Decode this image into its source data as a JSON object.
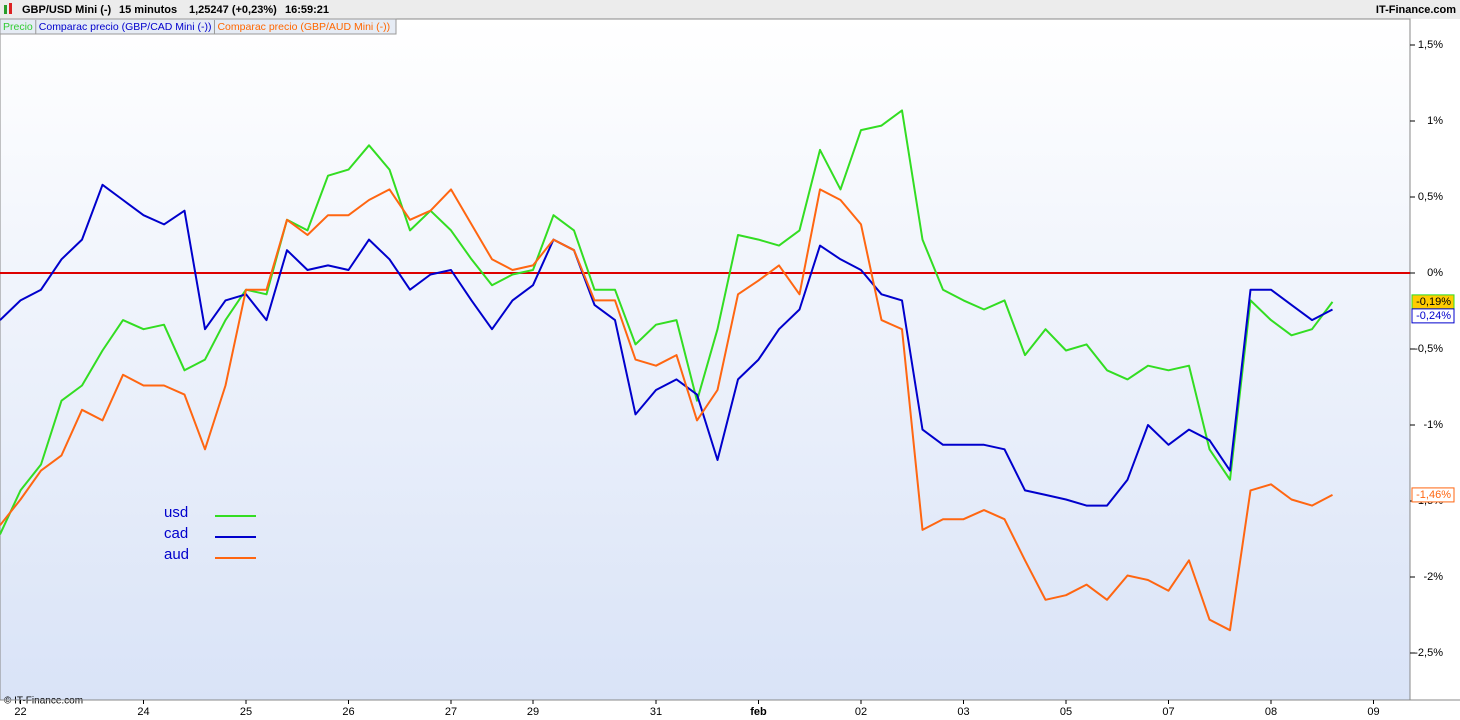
{
  "chart_data": {
    "type": "line",
    "instrument": "GBP/USD Mini (-)",
    "timeframe": "15 minutos",
    "quote": "1,25247 (+0,23%)",
    "time": "16:59:21",
    "brand": "IT-Finance.com",
    "copyright": "© IT-Finance.com",
    "indicator_labels": [
      {
        "text": "Precio",
        "color": "#33cc33"
      },
      {
        "text": "Comparac precio (GBP/CAD Mini (-))",
        "color": "#0000cc"
      },
      {
        "text": "Comparac precio (GBP/AUD Mini (-))",
        "color": "#ff6600"
      }
    ],
    "categories": [
      null,
      "22",
      null,
      null,
      null,
      null,
      null,
      "24",
      null,
      null,
      null,
      null,
      "25",
      null,
      null,
      null,
      null,
      "26",
      null,
      null,
      null,
      null,
      "27",
      null,
      null,
      null,
      "29",
      null,
      null,
      null,
      null,
      null,
      "31",
      null,
      null,
      null,
      null,
      "feb",
      null,
      null,
      null,
      null,
      "02",
      null,
      null,
      null,
      null,
      "03",
      null,
      null,
      null,
      null,
      "05",
      null,
      null,
      null,
      null,
      "07",
      null,
      null,
      null,
      null,
      "08",
      null,
      null,
      null,
      null,
      "09"
    ],
    "series": [
      {
        "name": "usd",
        "color": "#33dd22",
        "values": [
          -1.72,
          -1.43,
          -1.26,
          -0.84,
          -0.74,
          -0.51,
          -0.31,
          -0.37,
          -0.34,
          -0.64,
          -0.57,
          -0.31,
          -0.11,
          -0.14,
          0.35,
          0.28,
          0.64,
          0.68,
          0.84,
          0.68,
          0.28,
          0.41,
          0.28,
          0.09,
          -0.08,
          -0.01,
          0.02,
          0.38,
          0.28,
          -0.11,
          -0.11,
          -0.47,
          -0.34,
          -0.31,
          -0.84,
          -0.37,
          0.25,
          0.22,
          0.18,
          0.28,
          0.81,
          0.55,
          0.94,
          0.97,
          1.07,
          0.22,
          -0.11,
          -0.18,
          -0.24,
          -0.18,
          -0.54,
          -0.37,
          -0.51,
          -0.47,
          -0.64,
          -0.7,
          -0.61,
          -0.64,
          -0.61,
          -1.16,
          -1.36,
          -0.18,
          -0.31,
          -0.41,
          -0.37,
          -0.19,
          null,
          null
        ],
        "value_labels": [
          null,
          null,
          null,
          null,
          null,
          null,
          null,
          null,
          null,
          null,
          null,
          null,
          null,
          null,
          null,
          null,
          null,
          null,
          null,
          null,
          null,
          null,
          null,
          null,
          null,
          null,
          null,
          null,
          null,
          null,
          null,
          null,
          null,
          null,
          null,
          null,
          null,
          null,
          null,
          null,
          null,
          null,
          null,
          null,
          null,
          null,
          null,
          null,
          null,
          null,
          null,
          null,
          null,
          null,
          null,
          null,
          null,
          null,
          null,
          null,
          null,
          null,
          null,
          null,
          null,
          "-0,19%",
          null,
          null
        ],
        "label_fill": "#ffcc00"
      },
      {
        "name": "cad",
        "color": "#0000cc",
        "values": [
          -0.31,
          -0.18,
          -0.11,
          0.09,
          0.22,
          0.58,
          0.48,
          0.38,
          0.32,
          0.41,
          -0.37,
          -0.18,
          -0.14,
          -0.31,
          0.15,
          0.02,
          0.05,
          0.02,
          0.22,
          0.09,
          -0.11,
          -0.01,
          0.02,
          -0.18,
          -0.37,
          -0.18,
          -0.08,
          0.22,
          0.15,
          -0.21,
          -0.31,
          -0.93,
          -0.77,
          -0.7,
          -0.8,
          -1.23,
          -0.7,
          -0.57,
          -0.37,
          -0.24,
          0.18,
          0.09,
          0.02,
          -0.14,
          -0.18,
          -1.03,
          -1.13,
          -1.13,
          -1.13,
          -1.16,
          -1.43,
          -1.46,
          -1.49,
          -1.53,
          -1.53,
          -1.36,
          -1.0,
          -1.13,
          -1.03,
          -1.1,
          -1.3,
          -0.11,
          -0.11,
          -0.21,
          -0.31,
          -0.24,
          null,
          null
        ],
        "value_labels": [
          null,
          null,
          null,
          null,
          null,
          null,
          null,
          null,
          null,
          null,
          null,
          null,
          null,
          null,
          null,
          null,
          null,
          null,
          null,
          null,
          null,
          null,
          null,
          null,
          null,
          null,
          null,
          null,
          null,
          null,
          null,
          null,
          null,
          null,
          null,
          null,
          null,
          null,
          null,
          null,
          null,
          null,
          null,
          null,
          null,
          null,
          null,
          null,
          null,
          null,
          null,
          null,
          null,
          null,
          null,
          null,
          null,
          null,
          null,
          null,
          null,
          null,
          null,
          null,
          null,
          "-0,24%",
          null,
          null
        ],
        "label_fill": "#ffffff"
      },
      {
        "name": "aud",
        "color": "#ff6611",
        "values": [
          -1.66,
          -1.49,
          -1.3,
          -1.2,
          -0.9,
          -0.97,
          -0.67,
          -0.74,
          -0.74,
          -0.8,
          -1.16,
          -0.74,
          -0.11,
          -0.11,
          0.35,
          0.25,
          0.38,
          0.38,
          0.48,
          0.55,
          0.35,
          0.41,
          0.55,
          0.32,
          0.09,
          0.02,
          0.05,
          0.22,
          0.15,
          -0.18,
          -0.18,
          -0.57,
          -0.61,
          -0.54,
          -0.97,
          -0.77,
          -0.14,
          -0.05,
          0.05,
          -0.14,
          0.55,
          0.48,
          0.32,
          -0.31,
          -0.37,
          -1.69,
          -1.62,
          -1.62,
          -1.56,
          -1.62,
          -1.89,
          -2.15,
          -2.12,
          -2.05,
          -2.15,
          -1.99,
          -2.02,
          -2.09,
          -1.89,
          -2.28,
          -2.35,
          -1.43,
          -1.39,
          -1.49,
          -1.53,
          -1.46,
          null,
          null
        ],
        "value_labels": [
          null,
          null,
          null,
          null,
          null,
          null,
          null,
          null,
          null,
          null,
          null,
          null,
          null,
          null,
          null,
          null,
          null,
          null,
          null,
          null,
          null,
          null,
          null,
          null,
          null,
          null,
          null,
          null,
          null,
          null,
          null,
          null,
          null,
          null,
          null,
          null,
          null,
          null,
          null,
          null,
          null,
          null,
          null,
          null,
          null,
          null,
          null,
          null,
          null,
          null,
          null,
          null,
          null,
          null,
          null,
          null,
          null,
          null,
          null,
          null,
          null,
          null,
          null,
          null,
          null,
          "-1,46%",
          null,
          null
        ],
        "label_fill": "#ffffff"
      }
    ],
    "ylim": [
      -2.8,
      1.6
    ],
    "yticks": [
      {
        "value": 1.5,
        "label": "1,5%"
      },
      {
        "value": 1,
        "label": "1%"
      },
      {
        "value": 0.5,
        "label": "0,5%"
      },
      {
        "value": 0,
        "label": "0%"
      },
      {
        "value": -0.5,
        "label": "-0,5%"
      },
      {
        "value": -1,
        "label": "-1%"
      },
      {
        "value": -1.5,
        "label": "-1,5%"
      },
      {
        "value": -2,
        "label": "-2%"
      },
      {
        "value": -2.5,
        "label": "-2,5%"
      }
    ],
    "reference_line": {
      "value": 0,
      "color": "#dd0000"
    },
    "grid": false
  }
}
